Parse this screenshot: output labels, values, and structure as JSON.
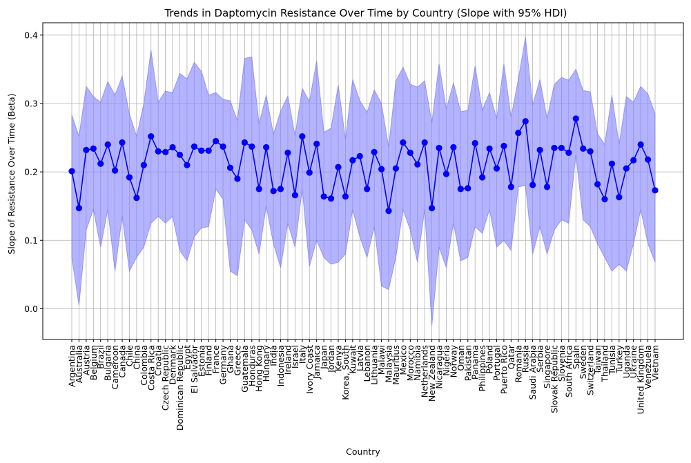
{
  "chart_data": {
    "type": "line",
    "title": "Trends in Daptomycin Resistance Over Time by Country (Slope with 95% HDI)",
    "xlabel": "Country",
    "ylabel": "Slope of Resistance Over Time (Beta)",
    "ylim": [
      -0.045,
      0.418
    ],
    "yticks": [
      0.0,
      0.1,
      0.2,
      0.3,
      0.4
    ],
    "ytick_labels": [
      "0.0",
      "0.1",
      "0.2",
      "0.3",
      "0.4"
    ],
    "grid": true,
    "line_color": "#0000ff",
    "band_color": "#8080ff",
    "categories": [
      "Argentina",
      "Australia",
      "Austria",
      "Belgium",
      "Brazil",
      "Bulgaria",
      "Cameroon",
      "Canada",
      "Chile",
      "China",
      "Colombia",
      "Costa Rica",
      "Croatia",
      "Czech Republic",
      "Denmark",
      "Dominican Republic",
      "Egypt",
      "El Salvador",
      "Estonia",
      "Finland",
      "France",
      "Germany",
      "Ghana",
      "Greece",
      "Guatemala",
      "Honduras",
      "Hong Kong",
      "Hungary",
      "India",
      "Indonesia",
      "Ireland",
      "Israel",
      "Italy",
      "Ivory Coast",
      "Jamaica",
      "Japan",
      "Jordan",
      "Kenya",
      "Korea, South",
      "Kuwait",
      "Latvia",
      "Lebanon",
      "Lithuania",
      "Malawi",
      "Malaysia",
      "Mauritius",
      "Mexico",
      "Morocco",
      "Namibia",
      "Netherlands",
      "New Zealand",
      "Nicaragua",
      "Nigeria",
      "Norway",
      "Oman",
      "Pakistan",
      "Panama",
      "Philippines",
      "Poland",
      "Portugal",
      "Puerto Rico",
      "Qatar",
      "Romania",
      "Russia",
      "Saudi Arabia",
      "Serbia",
      "Singapore",
      "Slovak Republic",
      "Slovenia",
      "South Africa",
      "Spain",
      "Sweden",
      "Switzerland",
      "Taiwan",
      "Thailand",
      "Tunisia",
      "Turkey",
      "Uganda",
      "Ukraine",
      "United Kingdom",
      "Venezuela",
      "Vietnam"
    ],
    "series": [
      {
        "values": [
          0.201,
          0.147,
          0.232,
          0.234,
          0.212,
          0.24,
          0.202,
          0.243,
          0.192,
          0.162,
          0.21,
          0.252,
          0.23,
          0.229,
          0.236,
          0.225,
          0.21,
          0.237,
          0.231,
          0.231,
          0.245,
          0.237,
          0.206,
          0.19,
          0.243,
          0.237,
          0.175,
          0.236,
          0.172,
          0.175,
          0.228,
          0.166,
          0.252,
          0.199,
          0.241,
          0.164,
          0.161,
          0.207,
          0.164,
          0.217,
          0.223,
          0.175,
          0.229,
          0.204,
          0.143,
          0.205,
          0.243,
          0.228,
          0.211,
          0.243,
          0.147,
          0.235,
          0.197,
          0.236,
          0.175,
          0.176,
          0.242,
          0.192,
          0.234,
          0.205,
          0.238,
          0.178,
          0.257,
          0.274,
          0.181,
          0.232,
          0.178,
          0.235,
          0.235,
          0.228,
          0.278,
          0.234,
          0.23,
          0.182,
          0.16,
          0.212,
          0.163,
          0.205,
          0.217,
          0.24,
          0.218,
          0.173
        ],
        "hdi_lower": [
          0.075,
          0.005,
          0.115,
          0.145,
          0.09,
          0.145,
          0.055,
          0.135,
          0.055,
          0.075,
          0.09,
          0.125,
          0.135,
          0.125,
          0.135,
          0.085,
          0.07,
          0.105,
          0.118,
          0.12,
          0.175,
          0.16,
          0.055,
          0.048,
          0.13,
          0.115,
          0.08,
          0.15,
          0.095,
          0.06,
          0.125,
          0.09,
          0.175,
          0.062,
          0.1,
          0.075,
          0.065,
          0.068,
          0.08,
          0.145,
          0.105,
          0.075,
          0.12,
          0.033,
          0.028,
          0.075,
          0.145,
          0.115,
          0.068,
          0.145,
          -0.025,
          0.09,
          0.06,
          0.125,
          0.07,
          0.075,
          0.12,
          0.11,
          0.145,
          0.09,
          0.1,
          0.085,
          0.178,
          0.18,
          0.08,
          0.12,
          0.08,
          0.115,
          0.13,
          0.125,
          0.225,
          0.13,
          0.12,
          0.095,
          0.075,
          0.055,
          0.065,
          0.055,
          0.095,
          0.145,
          0.095,
          0.068
        ],
        "hdi_upper": [
          0.283,
          0.252,
          0.325,
          0.31,
          0.302,
          0.332,
          0.312,
          0.34,
          0.285,
          0.252,
          0.3,
          0.378,
          0.302,
          0.318,
          0.316,
          0.344,
          0.336,
          0.36,
          0.347,
          0.312,
          0.316,
          0.306,
          0.304,
          0.275,
          0.366,
          0.368,
          0.27,
          0.312,
          0.255,
          0.289,
          0.311,
          0.253,
          0.322,
          0.303,
          0.362,
          0.258,
          0.264,
          0.327,
          0.248,
          0.335,
          0.304,
          0.287,
          0.32,
          0.3,
          0.236,
          0.333,
          0.353,
          0.328,
          0.324,
          0.333,
          0.272,
          0.358,
          0.292,
          0.33,
          0.288,
          0.29,
          0.355,
          0.29,
          0.316,
          0.278,
          0.358,
          0.28,
          0.335,
          0.397,
          0.298,
          0.335,
          0.278,
          0.328,
          0.338,
          0.334,
          0.35,
          0.319,
          0.317,
          0.256,
          0.24,
          0.312,
          0.24,
          0.31,
          0.302,
          0.325,
          0.314,
          0.285
        ]
      }
    ]
  }
}
